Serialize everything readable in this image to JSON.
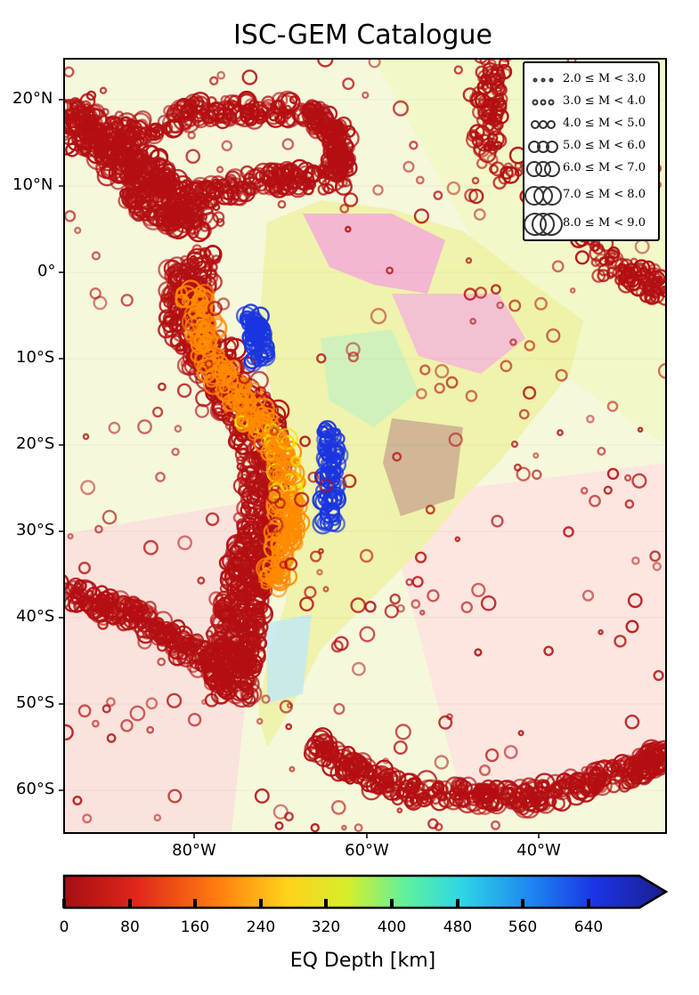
{
  "title": "ISC-GEM Catalogue",
  "map": {
    "lat_labels": [
      "20°N",
      "10°N",
      "0°",
      "10°S",
      "20°S",
      "30°S",
      "40°S",
      "50°S",
      "60°S"
    ],
    "lon_labels": [
      "80°W",
      "60°W",
      "40°W"
    ],
    "lat_range": [
      -65,
      25
    ],
    "lon_range": [
      -94,
      -24
    ]
  },
  "legend": {
    "entries": [
      "2.0 ≤ M < 3.0",
      "3.0 ≤ M < 4.0",
      "4.0 ≤ M < 5.0",
      "5.0 ≤ M < 6.0",
      "6.0 ≤ M < 7.0",
      "7.0 ≤ M < 8.0",
      "8.0 ≤ M < 9.0"
    ]
  },
  "colorbar": {
    "label": "EQ Depth [km]",
    "ticks": [
      "0",
      "80",
      "160",
      "240",
      "320",
      "400",
      "480",
      "560",
      "640"
    ],
    "range": [
      0,
      700
    ],
    "extend": "max",
    "colormap": "jet_r"
  },
  "colors": {
    "shallow": "#b40f12",
    "intermediate": "#ff8a00",
    "mid": "#f2e400",
    "deep": "#1a35e0",
    "background": "#f6f8d8"
  }
}
